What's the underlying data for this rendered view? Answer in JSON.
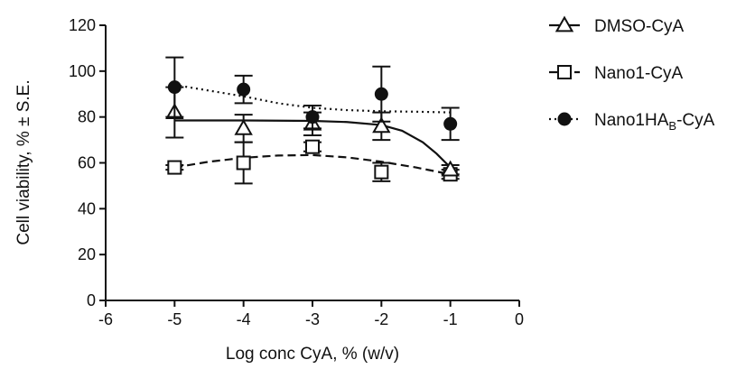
{
  "chart_data": {
    "type": "scatter",
    "xlabel": "Log conc CyA, % (w/v)",
    "ylabel": "Cell viability, % ± S.E.",
    "xlim": [
      -6,
      0
    ],
    "ylim": [
      0,
      120
    ],
    "x_ticks": [
      "-6",
      "-5",
      "-4",
      "-3",
      "-2",
      "-1",
      "0"
    ],
    "y_ticks": [
      "0",
      "20",
      "40",
      "60",
      "80",
      "100",
      "120"
    ],
    "grid": false,
    "legend_position": "right",
    "series": [
      {
        "name": "DMSO-CyA",
        "name_main": "DMSO-CyA",
        "name_sub": "",
        "name_tail": "",
        "marker": "triangle-open",
        "line": "solid",
        "x": [
          -5,
          -4,
          -3,
          -2,
          -1
        ],
        "y": [
          82,
          75,
          77,
          76,
          57
        ],
        "err": [
          11,
          6,
          5,
          6,
          2
        ],
        "fit": [
          [
            -5,
            78.5
          ],
          [
            -4,
            78.5
          ],
          [
            -3,
            78.3
          ],
          [
            -2.5,
            77.8
          ],
          [
            -2,
            76.5
          ],
          [
            -1.7,
            74
          ],
          [
            -1.4,
            69
          ],
          [
            -1.2,
            64
          ],
          [
            -1,
            58
          ]
        ]
      },
      {
        "name": "Nano1-CyA",
        "name_main": "Nano1-CyA",
        "name_sub": "",
        "name_tail": "",
        "marker": "square-open",
        "line": "dashed",
        "x": [
          -5,
          -4,
          -3,
          -2,
          -1
        ],
        "y": [
          58,
          60,
          67,
          56,
          55
        ],
        "err": [
          1,
          9,
          2,
          4,
          2
        ],
        "fit": [
          [
            -5,
            58
          ],
          [
            -4.5,
            60.5
          ],
          [
            -4,
            62.2
          ],
          [
            -3.5,
            63.2
          ],
          [
            -3,
            63.4
          ],
          [
            -2.5,
            62.4
          ],
          [
            -2,
            60.5
          ],
          [
            -1.5,
            58
          ],
          [
            -1,
            55
          ]
        ]
      },
      {
        "name": "Nano1HAB-CyA",
        "name_main": "Nano1HA",
        "name_sub": "B",
        "name_tail": "-CyA",
        "marker": "circle-filled",
        "line": "dotted",
        "x": [
          -5,
          -4,
          -3,
          -2,
          -1
        ],
        "y": [
          93,
          92,
          80,
          90,
          77
        ],
        "err": [
          13,
          6,
          5,
          12,
          7
        ],
        "fit": [
          [
            -5,
            94
          ],
          [
            -4.5,
            91.5
          ],
          [
            -4,
            89
          ],
          [
            -3.5,
            86
          ],
          [
            -3,
            84
          ],
          [
            -2.5,
            83
          ],
          [
            -2,
            82.5
          ],
          [
            -1.5,
            82.3
          ],
          [
            -1,
            82
          ]
        ]
      }
    ]
  }
}
